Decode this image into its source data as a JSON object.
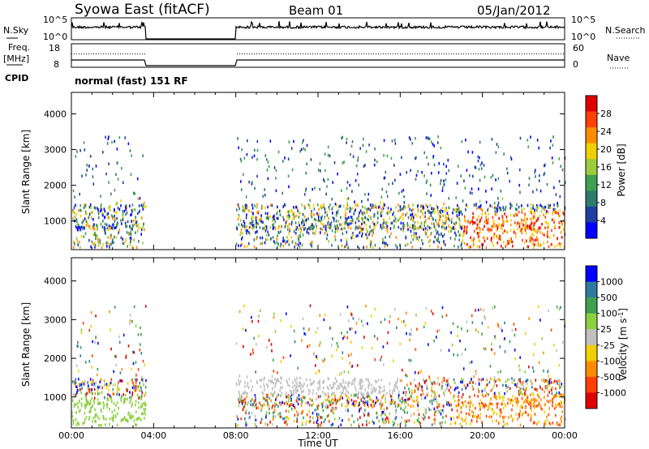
{
  "header": {
    "title": "Syowa East (fitACF)",
    "beam": "Beam 01",
    "date": "05/Jan/2012"
  },
  "panels": {
    "nsky": {
      "label": "N.Sky",
      "left_ticks": [
        "10^5",
        "10^0"
      ],
      "right_label": "N.Search",
      "right_ticks": [
        "10^5",
        "10^0"
      ]
    },
    "freq": {
      "label_line1": "Freq.",
      "label_line2": "[MHz]",
      "left_ticks": [
        "18",
        "8"
      ],
      "right_label": "Nave",
      "right_ticks": [
        "60",
        "0"
      ]
    },
    "cpid": {
      "label": "CPID",
      "value": "normal (fast) 151 RF"
    }
  },
  "colors": {
    "power_scale": [
      "#0000ff",
      "#1c3fa0",
      "#2f7a6e",
      "#3fa050",
      "#9bcd3c",
      "#f0d000",
      "#ff8c00",
      "#ff4000",
      "#e00000"
    ],
    "velocity_scale": [
      "#0000ff",
      "#2f7aa0",
      "#3fa050",
      "#8cd040",
      "#c0c0c0",
      "#f0d000",
      "#ff8c00",
      "#ff4000",
      "#e00000"
    ],
    "missing": "#ffffff"
  },
  "chart_data": [
    {
      "type": "heatmap",
      "name": "power-panel",
      "xlabel": "",
      "ylabel": "Slant Range [km]",
      "xlim": [
        0,
        24
      ],
      "ylim": [
        200,
        4600
      ],
      "yticks": [
        "1000",
        "2000",
        "3000",
        "4000"
      ],
      "colorbar": {
        "label": "Power [dB]",
        "ticks": [
          "4",
          "8",
          "12",
          "16",
          "20",
          "24",
          "28"
        ],
        "range": [
          0,
          32
        ]
      },
      "data_gaps_hours": [
        [
          3.6,
          8.0
        ]
      ]
    },
    {
      "type": "heatmap",
      "name": "velocity-panel",
      "xlabel": "Time UT",
      "ylabel": "Slant Range [km]",
      "xlim": [
        0,
        24
      ],
      "ylim": [
        200,
        4600
      ],
      "xticks": [
        "00:00",
        "04:00",
        "08:00",
        "12:00",
        "16:00",
        "20:00",
        "00:00"
      ],
      "yticks": [
        "1000",
        "2000",
        "3000",
        "4000"
      ],
      "colorbar": {
        "label": "Velocity [m s^-1]",
        "ticks": [
          "1000",
          "500",
          "100",
          "25",
          "-25",
          "-100",
          "-500",
          "-1000"
        ]
      },
      "data_gaps_hours": [
        [
          3.6,
          8.0
        ]
      ]
    }
  ]
}
